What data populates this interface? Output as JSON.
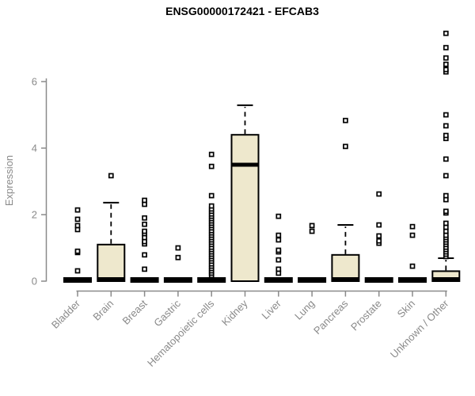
{
  "chart_data": {
    "type": "boxplot",
    "title": "ENSG00000172421 - EFCAB3",
    "ylabel": "Expression",
    "xlabel": "",
    "yticks": [
      0,
      2,
      4,
      6
    ],
    "ylim": [
      0,
      7.6
    ],
    "grid": false,
    "legend": false,
    "box_fill_color": "#EEE8CD",
    "axis_color": "#8a8a8a",
    "outlier_color": "#000000",
    "categories": [
      "Bladder",
      "Brain",
      "Breast",
      "Gastric",
      "Hematopoietic cells",
      "Kidney",
      "Liver",
      "Lung",
      "Pancreas",
      "Prostate",
      "Skin",
      "Unknown / Other"
    ],
    "series": [
      {
        "name": "Bladder",
        "q1": 0,
        "median": 0,
        "q3": 0,
        "whisker_low": 0,
        "whisker_high": 0,
        "outliers": [
          0.31,
          0.86,
          0.9,
          1.55,
          1.67,
          1.86,
          2.14
        ]
      },
      {
        "name": "Brain",
        "q1": 0,
        "median": 0,
        "q3": 1.1,
        "whisker_low": 0,
        "whisker_high": 2.36,
        "outliers": [
          3.17
        ]
      },
      {
        "name": "Breast",
        "q1": 0,
        "median": 0,
        "q3": 0,
        "whisker_low": 0,
        "whisker_high": 0,
        "outliers": [
          0.36,
          0.79,
          1.12,
          1.19,
          1.31,
          1.43,
          1.5,
          1.71,
          1.9,
          2.31,
          2.43
        ]
      },
      {
        "name": "Gastric",
        "q1": 0,
        "median": 0,
        "q3": 0,
        "whisker_low": 0,
        "whisker_high": 0,
        "outliers": [
          0.71,
          1.0
        ]
      },
      {
        "name": "Hematopoietic cells",
        "q1": 0,
        "median": 0,
        "q3": 0,
        "whisker_low": 0,
        "whisker_high": 0,
        "outliers": [
          0.17,
          0.24,
          0.31,
          0.38,
          0.45,
          0.52,
          0.6,
          0.67,
          0.74,
          0.81,
          0.88,
          0.95,
          1.02,
          1.1,
          1.17,
          1.24,
          1.31,
          1.38,
          1.45,
          1.52,
          1.6,
          1.67,
          1.74,
          1.81,
          1.88,
          1.95,
          2.02,
          2.1,
          2.17,
          2.26,
          2.57,
          3.45,
          3.81
        ]
      },
      {
        "name": "Kidney",
        "q1": 0,
        "median": 3.5,
        "q3": 4.4,
        "whisker_low": 0,
        "whisker_high": 5.29,
        "outliers": []
      },
      {
        "name": "Liver",
        "q1": 0,
        "median": 0,
        "q3": 0,
        "whisker_low": 0,
        "whisker_high": 0,
        "outliers": [
          0.24,
          0.36,
          0.64,
          0.88,
          0.93,
          1.24,
          1.38,
          1.95
        ]
      },
      {
        "name": "Lung",
        "q1": 0,
        "median": 0,
        "q3": 0,
        "whisker_low": 0,
        "whisker_high": 0,
        "outliers": [
          1.5,
          1.67
        ]
      },
      {
        "name": "Pancreas",
        "q1": 0,
        "median": 0,
        "q3": 0.79,
        "whisker_low": 0,
        "whisker_high": 1.69,
        "outliers": [
          4.05,
          4.83
        ]
      },
      {
        "name": "Prostate",
        "q1": 0,
        "median": 0,
        "q3": 0,
        "whisker_low": 0,
        "whisker_high": 0,
        "outliers": [
          1.14,
          1.21,
          1.36,
          1.69,
          2.62
        ]
      },
      {
        "name": "Skin",
        "q1": 0,
        "median": 0,
        "q3": 0,
        "whisker_low": 0,
        "whisker_high": 0,
        "outliers": [
          0.45,
          1.38,
          1.64
        ]
      },
      {
        "name": "Unknown / Other",
        "q1": 0,
        "median": 0.03,
        "q3": 0.3,
        "whisker_low": 0,
        "whisker_high": 0.69,
        "outliers": [
          0.74,
          0.81,
          0.88,
          0.95,
          1.02,
          1.1,
          1.17,
          1.24,
          1.31,
          1.38,
          1.5,
          1.62,
          1.74,
          2.05,
          2.1,
          2.45,
          2.57,
          3.17,
          3.67,
          4.29,
          4.38,
          4.67,
          5.0,
          6.29,
          6.36,
          6.52,
          6.71,
          7.02,
          7.45
        ]
      }
    ]
  }
}
